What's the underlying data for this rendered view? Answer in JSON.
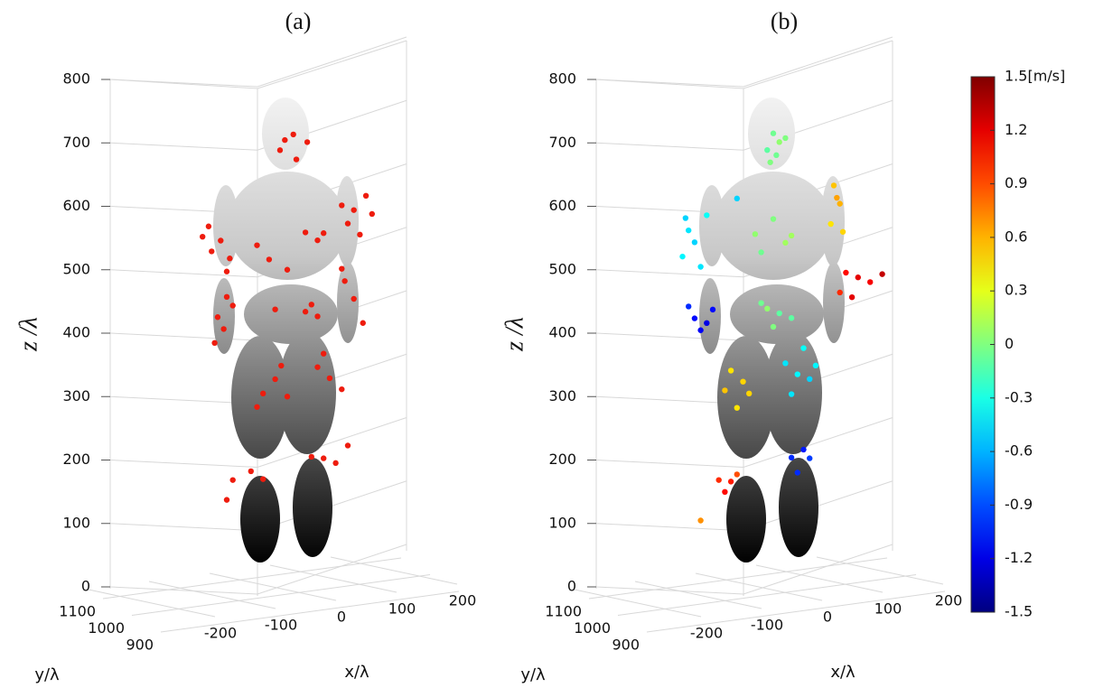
{
  "chart_data": [
    {
      "type": "scatter3d",
      "title": "(a)",
      "xlabel": "x/λ",
      "ylabel": "y/λ",
      "zlabel": "z /λ",
      "xlim": [
        -250,
        250
      ],
      "ylim": [
        850,
        1150
      ],
      "zlim": [
        0,
        800
      ],
      "xticks": [
        -200,
        -100,
        0,
        100,
        200
      ],
      "yticks": [
        900,
        1000,
        1100
      ],
      "zticks": [
        0,
        100,
        200,
        300,
        400,
        500,
        600,
        700,
        800
      ],
      "color": "#ee1c0e",
      "x": [
        -4,
        10,
        33,
        -12,
        15,
        -130,
        -110,
        -95,
        -125,
        -100,
        -140,
        -50,
        30,
        60,
        0,
        50,
        -30,
        90,
        110,
        130,
        100,
        140,
        120,
        -115,
        -100,
        -120,
        -105,
        -90,
        30,
        40,
        50,
        -20,
        95,
        110,
        125,
        90,
        -40,
        -20,
        -50,
        0,
        -10,
        50,
        70,
        90,
        60,
        -90,
        -60,
        -40,
        -100,
        40,
        60,
        100,
        80
      ],
      "y": [
        1000,
        1000,
        1000,
        1000,
        1000,
        1000,
        1000,
        1000,
        1000,
        1000,
        1000,
        1000,
        1000,
        1000,
        1000,
        1000,
        1000,
        1000,
        1000,
        1000,
        1000,
        1000,
        1000,
        1000,
        1000,
        1000,
        1000,
        1000,
        1000,
        1000,
        1000,
        1000,
        1000,
        1000,
        1000,
        1000,
        1000,
        1000,
        1000,
        1000,
        1000,
        1000,
        1000,
        1000,
        1000,
        1000,
        1000,
        1000,
        1000,
        1000,
        1000,
        1000,
        1000
      ],
      "z": [
        705,
        712,
        697,
        690,
        672,
        585,
        560,
        530,
        545,
        510,
        570,
        545,
        555,
        550,
        500,
        540,
        520,
        590,
        580,
        600,
        560,
        570,
        540,
        440,
        470,
        400,
        420,
        455,
        430,
        440,
        420,
        440,
        470,
        440,
        400,
        490,
        310,
        330,
        290,
        300,
        350,
        340,
        320,
        300,
        360,
        180,
        190,
        175,
        150,
        200,
        195,
        210,
        185
      ]
    },
    {
      "type": "scatter3d",
      "title": "(b)",
      "xlabel": "x/λ",
      "ylabel": "y/λ",
      "zlabel": "z /λ",
      "xlim": [
        -250,
        250
      ],
      "ylim": [
        850,
        1150
      ],
      "zlim": [
        0,
        800
      ],
      "xticks": [
        -200,
        -100,
        0,
        100,
        200
      ],
      "yticks": [
        900,
        1000,
        1100
      ],
      "zticks": [
        0,
        100,
        200,
        300,
        400,
        500,
        600,
        700,
        800
      ],
      "colormap": "jet",
      "clim": [
        -1.5,
        1.5
      ],
      "cticks": [
        {
          "value": 1.5,
          "label": "1.5[m/s]"
        },
        1.2,
        0.9,
        0.6,
        0.3,
        0,
        -0.3,
        -0.6,
        -0.9,
        -1.2,
        -1.5
      ],
      "x": [
        0,
        10,
        -10,
        20,
        5,
        -5,
        -140,
        -130,
        -150,
        -120,
        -145,
        -110,
        -30,
        0,
        30,
        -20,
        20,
        -60,
        100,
        110,
        95,
        115,
        105,
        -130,
        -110,
        -140,
        -100,
        -120,
        -20,
        10,
        0,
        30,
        -10,
        120,
        140,
        110,
        160,
        130,
        180,
        -70,
        -50,
        -80,
        -40,
        -60,
        20,
        40,
        60,
        30,
        70,
        50,
        -90,
        -80,
        -70,
        -60,
        -120,
        30,
        50,
        60,
        40
      ],
      "y": [
        1000,
        1000,
        1000,
        1000,
        1000,
        1000,
        1000,
        1000,
        1000,
        1000,
        1000,
        1000,
        1000,
        1000,
        1000,
        1000,
        1000,
        1000,
        1000,
        1000,
        1000,
        1000,
        1000,
        1000,
        1000,
        1000,
        1000,
        1000,
        1000,
        1000,
        1000,
        1000,
        1000,
        1000,
        1000,
        1000,
        1000,
        1000,
        1000,
        1000,
        1000,
        1000,
        1000,
        1000,
        1000,
        1000,
        1000,
        1000,
        1000,
        1000,
        1000,
        1000,
        1000,
        1000,
        1000,
        1000,
        1000,
        1000,
        1000
      ],
      "z": [
        715,
        700,
        690,
        705,
        680,
        670,
        580,
        560,
        540,
        520,
        600,
        600,
        560,
        580,
        550,
        530,
        540,
        620,
        620,
        590,
        560,
        545,
        600,
        440,
        430,
        460,
        450,
        420,
        450,
        430,
        410,
        420,
        440,
        480,
        470,
        450,
        460,
        440,
        470,
        350,
        330,
        320,
        310,
        290,
        350,
        330,
        320,
        300,
        340,
        370,
        180,
        160,
        175,
        185,
        120,
        200,
        210,
        195,
        175
      ],
      "c": [
        -0.05,
        0.05,
        -0.1,
        0,
        -0.05,
        0,
        -0.45,
        -0.5,
        -0.4,
        -0.45,
        -0.5,
        -0.35,
        0.05,
        0,
        0.1,
        -0.05,
        0.1,
        -0.5,
        0.55,
        0.6,
        0.45,
        0.5,
        0.65,
        -1.1,
        -1.2,
        -1.0,
        -1.1,
        -1.15,
        -0.05,
        -0.1,
        0,
        -0.1,
        0.05,
        1.1,
        1.2,
        1.0,
        1.15,
        1.2,
        1.3,
        0.45,
        0.5,
        0.55,
        0.5,
        0.45,
        -0.45,
        -0.4,
        -0.5,
        -0.45,
        -0.4,
        -0.35,
        1.0,
        1.1,
        1.05,
        0.9,
        0.7,
        -1.0,
        -1.05,
        -0.95,
        -1.0
      ]
    }
  ]
}
